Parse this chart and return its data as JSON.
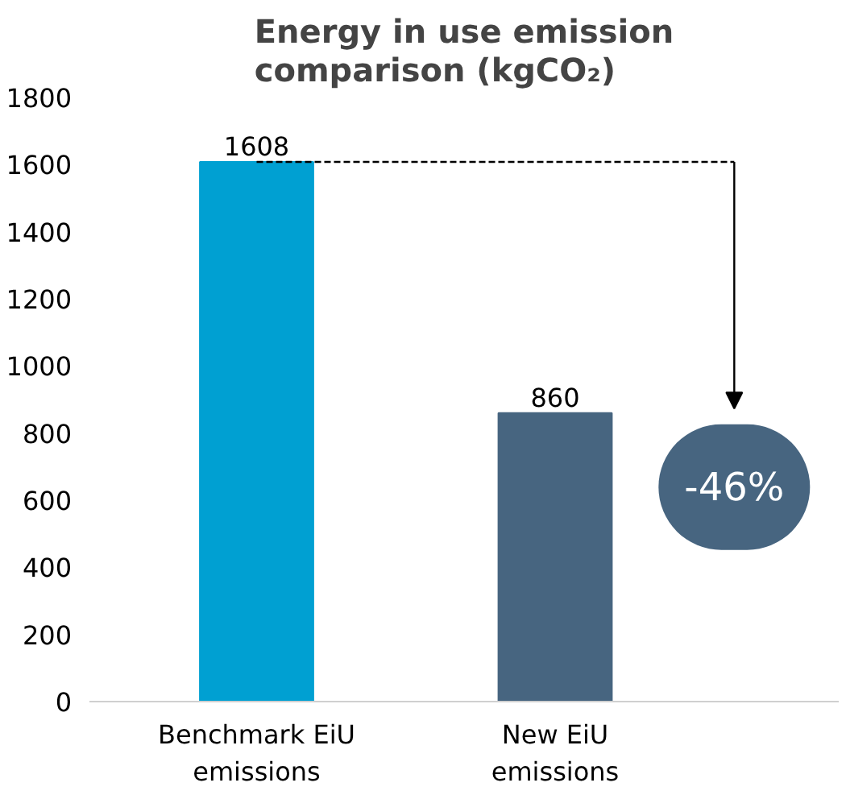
{
  "chart_data": {
    "type": "bar",
    "title": "Energy in use emission comparison (kgCO₂)",
    "categories": [
      "Benchmark EiU emissions",
      "New EiU emissions"
    ],
    "values": [
      1608,
      860
    ],
    "colors": [
      "#00a0d2",
      "#476580"
    ],
    "ylim": [
      0,
      1800
    ],
    "yticks": [
      0,
      200,
      400,
      600,
      800,
      1000,
      1200,
      1400,
      1600,
      1800
    ],
    "data_labels": true,
    "annotations": [
      "-46%"
    ]
  }
}
